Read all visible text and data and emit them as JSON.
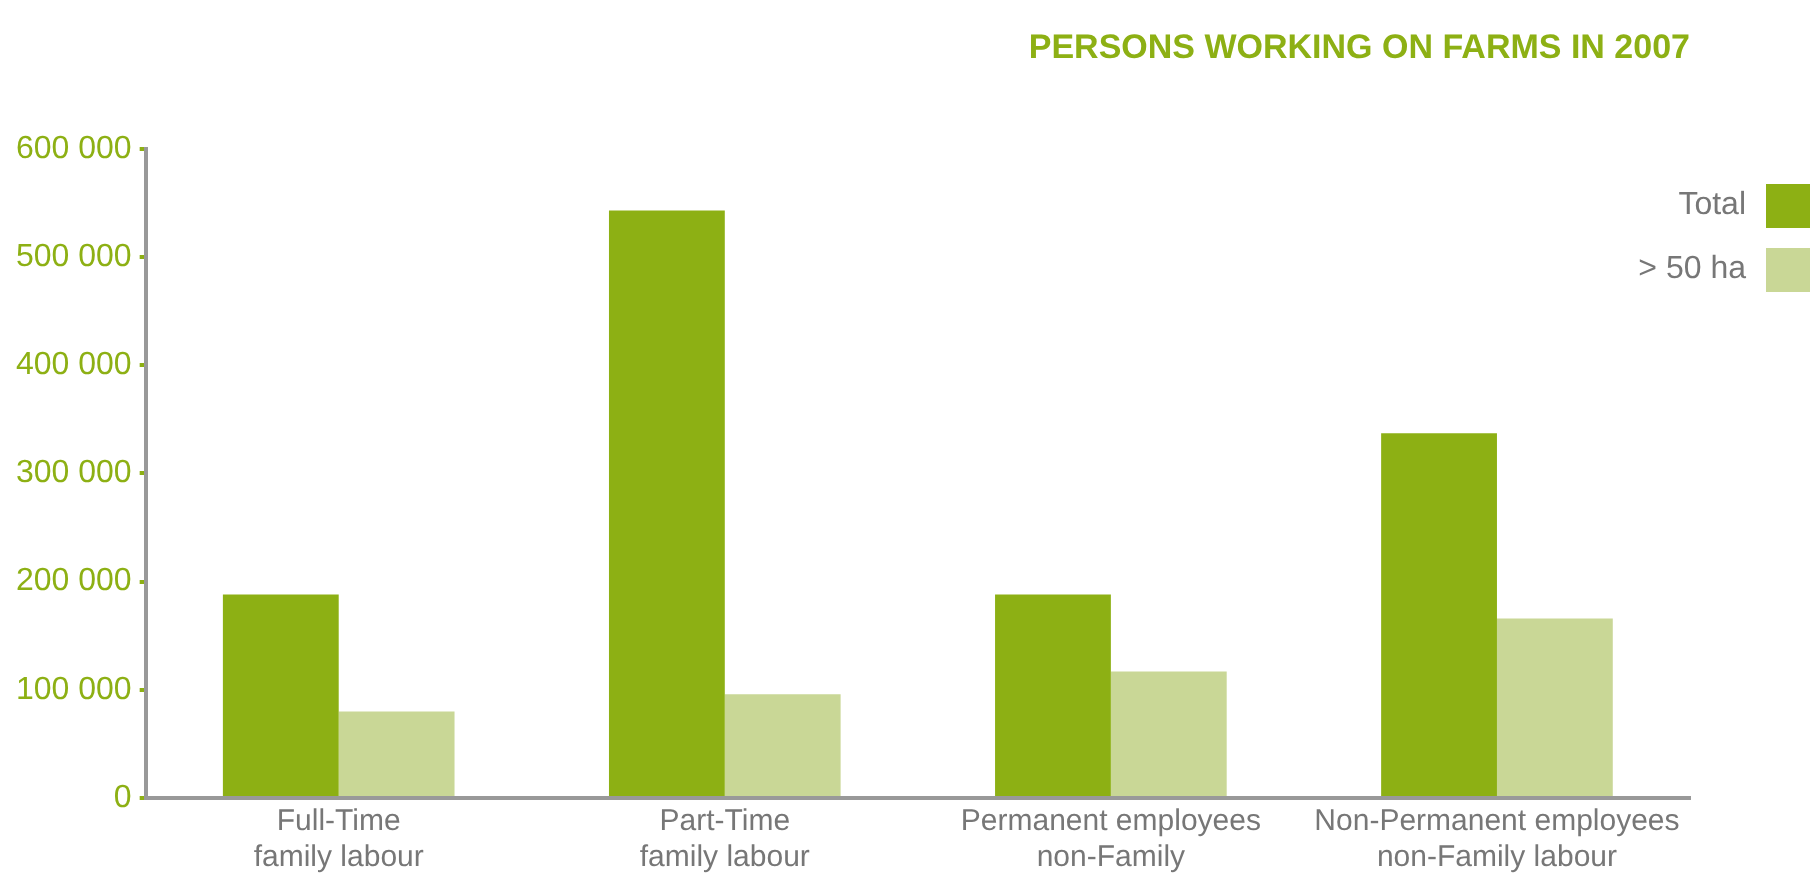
{
  "chart_data": {
    "type": "bar",
    "title": "PERSONS WORKING ON FARMS IN 2007",
    "categories": [
      "Full-Time\nfamily labour",
      "Part-Time\nfamily labour",
      "Permanent employees\nnon-Family",
      "Non-Permanent employees\nnon-Family labour"
    ],
    "series": [
      {
        "name": "Total",
        "color": "#8db014",
        "values": [
          188000,
          543000,
          188000,
          337000
        ]
      },
      {
        "name": "> 50 ha",
        "color": "#c9d796",
        "values": [
          80000,
          96000,
          117000,
          166000
        ]
      }
    ],
    "ylim": [
      0,
      600000
    ],
    "yticks": [
      0,
      {
        "value": 100000,
        "label": "100 000"
      },
      {
        "value": 200000,
        "label": "200 000"
      },
      {
        "value": 300000,
        "label": "300 000"
      },
      {
        "value": 400000,
        "label": "400 000"
      },
      {
        "value": 500000,
        "label": "500 000"
      },
      {
        "value": 600000,
        "label": "600 000"
      }
    ],
    "grid": false,
    "legend": "top right"
  }
}
